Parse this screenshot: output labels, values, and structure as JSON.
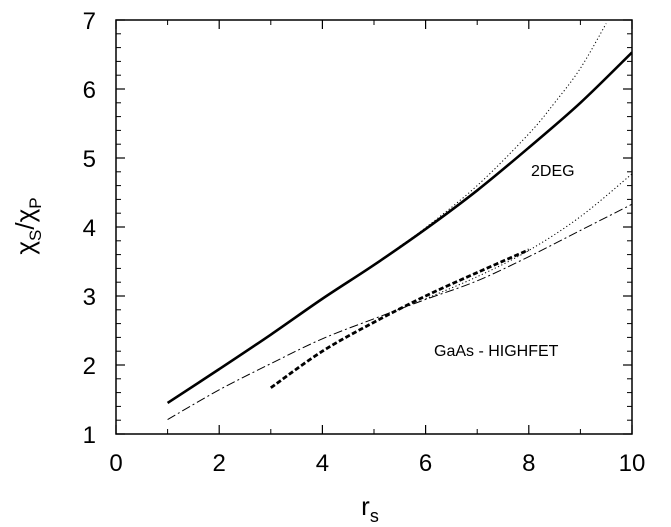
{
  "chart_data": {
    "type": "line",
    "title": "",
    "xlabel": {
      "main": "r",
      "sub": "s"
    },
    "ylabel": {
      "a_main": "χ",
      "a_sub": "S",
      "slash": "/",
      "b_main": "χ",
      "b_sub": "P"
    },
    "xlim": [
      0,
      10
    ],
    "ylim": [
      1,
      7
    ],
    "x_ticks": [
      0,
      2,
      4,
      6,
      8,
      10
    ],
    "x_tick_labels": [
      "0",
      "2",
      "4",
      "6",
      "8",
      "10"
    ],
    "y_ticks": [
      1,
      2,
      3,
      4,
      5,
      6,
      7
    ],
    "y_tick_labels": [
      "1",
      "2",
      "3",
      "4",
      "5",
      "6",
      "7"
    ],
    "grid": false,
    "legend": "none",
    "annotations": [
      {
        "text": "2DEG",
        "x": 8.05,
        "y": 4.8
      },
      {
        "text": "GaAs - HIGHFET",
        "x": 6.15,
        "y": 2.05
      }
    ],
    "series": [
      {
        "style": "solid-thick",
        "x": [
          1,
          2,
          3,
          4,
          5,
          6,
          7,
          8,
          9,
          10
        ],
        "y": [
          1.45,
          1.94,
          2.44,
          2.96,
          3.45,
          3.97,
          4.53,
          5.15,
          5.8,
          6.53
        ]
      },
      {
        "style": "dotted",
        "x": [
          5.5,
          6,
          7,
          8,
          8.5,
          9,
          9.5
        ],
        "y": [
          3.72,
          3.99,
          4.6,
          5.35,
          5.8,
          6.3,
          6.95
        ]
      },
      {
        "style": "dash-dot",
        "x": [
          1,
          2,
          3,
          4,
          5,
          6,
          7,
          8,
          9,
          10
        ],
        "y": [
          1.21,
          1.64,
          2.02,
          2.38,
          2.67,
          2.95,
          3.22,
          3.57,
          3.95,
          4.33
        ]
      },
      {
        "style": "dotted",
        "x": [
          6,
          7,
          8,
          9,
          10
        ],
        "y": [
          2.96,
          3.28,
          3.66,
          4.15,
          4.77
        ]
      },
      {
        "style": "dashed-thick",
        "x": [
          3,
          4,
          5,
          6,
          7,
          8
        ],
        "y": [
          1.67,
          2.2,
          2.62,
          3.0,
          3.34,
          3.67
        ]
      }
    ]
  }
}
